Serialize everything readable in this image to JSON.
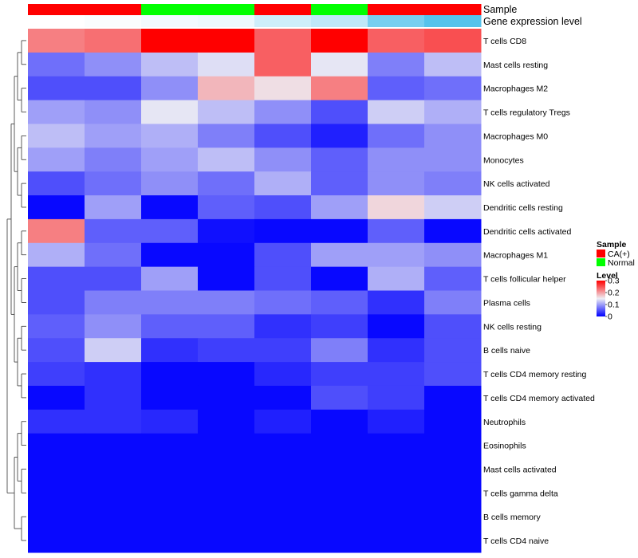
{
  "chart_data": {
    "type": "heatmap",
    "annotation_labels": [
      "Sample",
      "Gene expression level"
    ],
    "sample_groups": [
      "CA(+)",
      "CA(+)",
      "Normal",
      "Normal",
      "CA(+)",
      "Normal",
      "CA(+)",
      "CA(+)"
    ],
    "expression_level": [
      0.02,
      0.04,
      0.07,
      0.09,
      0.21,
      0.27,
      0.55,
      0.68
    ],
    "rows": [
      "T cells CD8",
      "Mast cells resting",
      "Macrophages M2",
      "T cells regulatory  Tregs",
      "Macrophages M0",
      "Monocytes",
      "NK cells activated",
      "Dendritic cells resting",
      "Dendritic cells activated",
      "Macrophages M1",
      "T cells follicular helper",
      "Plasma cells",
      "NK cells resting",
      "B cells naive",
      "T cells CD4 memory resting",
      "T cells CD4 memory activated",
      "Neutrophils",
      "Eosinophils",
      "Mast cells activated",
      "T cells gamma delta",
      "B cells memory",
      "T cells CD4 naive"
    ],
    "values": [
      [
        0.22,
        0.23,
        0.3,
        0.3,
        0.24,
        0.3,
        0.24,
        0.25
      ],
      [
        0.07,
        0.09,
        0.12,
        0.14,
        0.24,
        0.145,
        0.08,
        0.12
      ],
      [
        0.05,
        0.05,
        0.09,
        0.185,
        0.16,
        0.22,
        0.06,
        0.07
      ],
      [
        0.1,
        0.09,
        0.145,
        0.12,
        0.09,
        0.05,
        0.13,
        0.11
      ],
      [
        0.12,
        0.1,
        0.11,
        0.08,
        0.05,
        0.02,
        0.07,
        0.09
      ],
      [
        0.1,
        0.08,
        0.1,
        0.12,
        0.09,
        0.06,
        0.09,
        0.09
      ],
      [
        0.05,
        0.07,
        0.09,
        0.07,
        0.11,
        0.06,
        0.09,
        0.08
      ],
      [
        0.005,
        0.1,
        0.005,
        0.06,
        0.05,
        0.1,
        0.165,
        0.13
      ],
      [
        0.22,
        0.06,
        0.06,
        0.01,
        0.005,
        0.005,
        0.06,
        0.005
      ],
      [
        0.11,
        0.07,
        0.005,
        0.005,
        0.05,
        0.1,
        0.1,
        0.09
      ],
      [
        0.05,
        0.05,
        0.1,
        0.005,
        0.05,
        0.005,
        0.11,
        0.06
      ],
      [
        0.05,
        0.08,
        0.08,
        0.08,
        0.07,
        0.06,
        0.03,
        0.08
      ],
      [
        0.06,
        0.09,
        0.06,
        0.06,
        0.03,
        0.04,
        0.005,
        0.05
      ],
      [
        0.05,
        0.13,
        0.03,
        0.04,
        0.04,
        0.08,
        0.03,
        0.05
      ],
      [
        0.04,
        0.03,
        0.005,
        0.005,
        0.025,
        0.04,
        0.04,
        0.05
      ],
      [
        0.005,
        0.03,
        0.005,
        0.005,
        0.005,
        0.05,
        0.04,
        0.005
      ],
      [
        0.03,
        0.03,
        0.025,
        0.005,
        0.02,
        0.005,
        0.02,
        0.005
      ],
      [
        0.005,
        0.005,
        0.005,
        0.005,
        0.005,
        0.005,
        0.005,
        0.005
      ],
      [
        0.005,
        0.005,
        0.005,
        0.005,
        0.005,
        0.005,
        0.005,
        0.005
      ],
      [
        0.005,
        0.005,
        0.005,
        0.005,
        0.005,
        0.005,
        0.005,
        0.005
      ],
      [
        0.005,
        0.005,
        0.005,
        0.005,
        0.005,
        0.005,
        0.005,
        0.005
      ],
      [
        0.005,
        0.005,
        0.005,
        0.005,
        0.005,
        0.005,
        0.005,
        0.005
      ]
    ],
    "color_scale": {
      "min": 0,
      "max": 0.3,
      "low_color": "#0000ff",
      "mid_color": "#eeeef4",
      "high_color": "#ff0000",
      "mid_value": 0.15
    },
    "expression_colors": {
      "low": "#ffffff",
      "high": "#56c3ec"
    },
    "legend": {
      "placement": "right",
      "sample": {
        "title": "Sample",
        "items": [
          {
            "label": "CA(+)",
            "color": "#ff0000"
          },
          {
            "label": "Normal",
            "color": "#00ff00"
          }
        ]
      },
      "level": {
        "title": "Level",
        "ticks": [
          "0.3",
          "0.2",
          "0.1",
          "0"
        ],
        "tick_values": [
          0.3,
          0.2,
          0.1,
          0
        ]
      }
    },
    "row_dendrogram": true
  }
}
